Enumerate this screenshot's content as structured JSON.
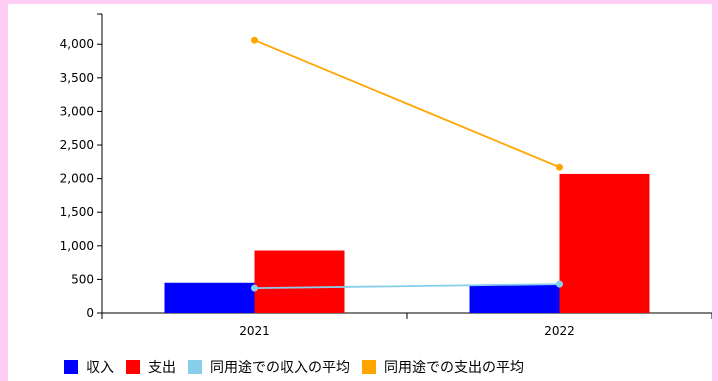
{
  "chart_data": {
    "type": "bar",
    "categories": [
      "2021",
      "2022"
    ],
    "series": [
      {
        "name": "収入",
        "kind": "bar",
        "color": "#0000ff",
        "values": [
          450,
          420
        ]
      },
      {
        "name": "支出",
        "kind": "bar",
        "color": "#ff0000",
        "values": [
          930,
          2070
        ]
      },
      {
        "name": "同用途での収入の平均",
        "kind": "line",
        "color": "#87ceeb",
        "values": [
          370,
          430
        ]
      },
      {
        "name": "同用途での支出の平均",
        "kind": "line",
        "color": "#ffa500",
        "values": [
          4060,
          2170
        ]
      }
    ],
    "yticks": [
      "0",
      "500",
      "1,000",
      "1,500",
      "2,000",
      "2,500",
      "3,000",
      "3,500",
      "4,000"
    ],
    "ylim": [
      0,
      4450
    ],
    "grid": false,
    "legend_position": "bottom"
  }
}
